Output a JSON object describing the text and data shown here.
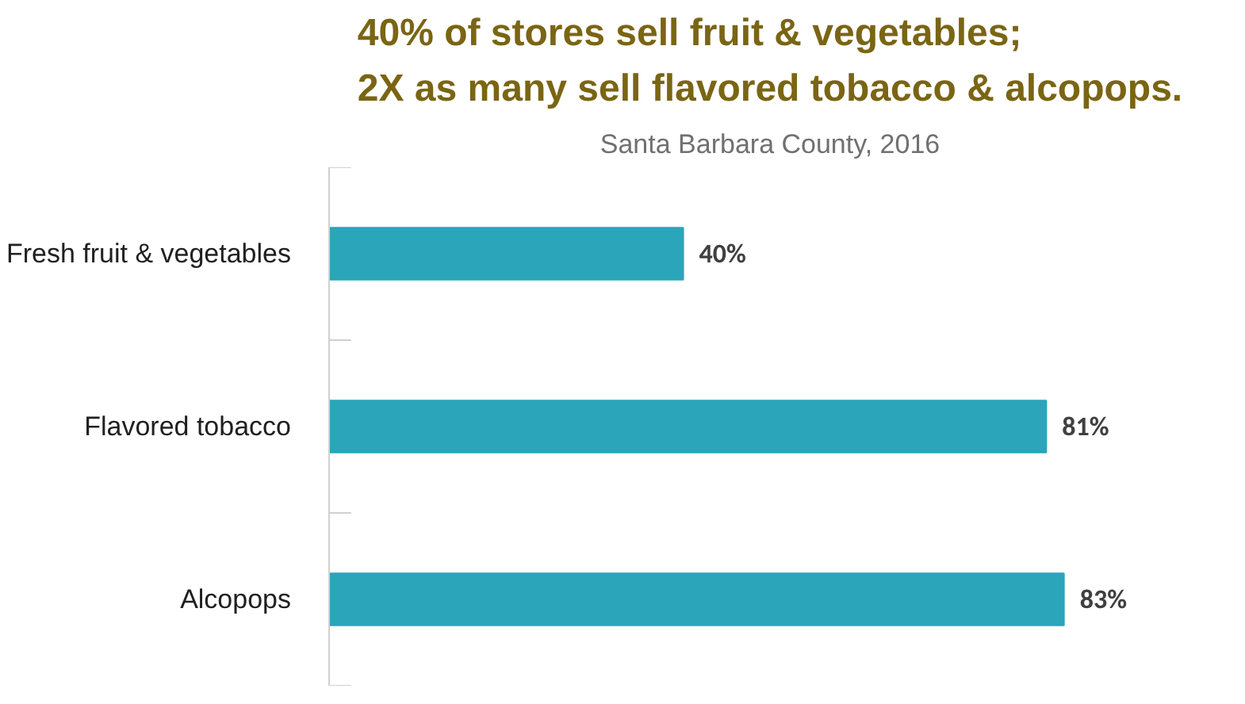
{
  "chart_data": {
    "type": "bar",
    "orientation": "horizontal",
    "title": "40% of stores sell fruit & vegetables;\n2X as many sell flavored tobacco & alcopops.",
    "subtitle": "Santa Barbara County, 2016",
    "categories": [
      "Fresh fruit & vegetables",
      "Flavored tobacco",
      "Alcopops"
    ],
    "values": [
      40,
      81,
      83
    ],
    "color": "#2aa5b9",
    "value_labels": [
      "40%",
      "81%",
      "83%"
    ],
    "grid": false
  }
}
